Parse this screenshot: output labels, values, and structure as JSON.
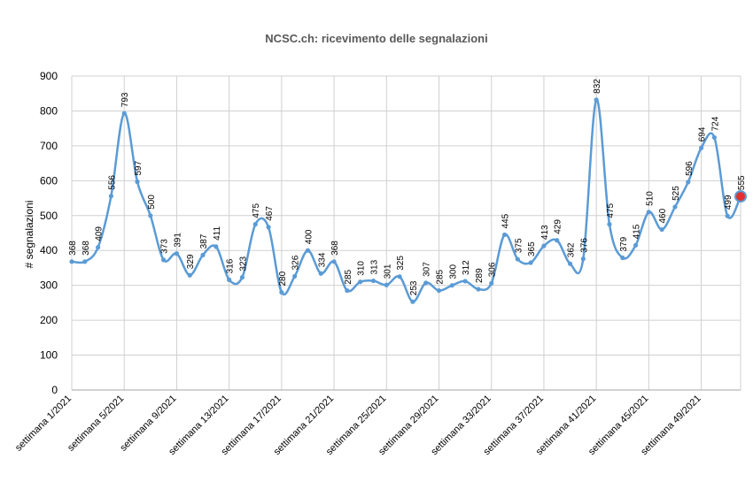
{
  "chart_data": {
    "type": "line",
    "title": "NCSC.ch: ricevimento delle segnalazioni",
    "xlabel": "",
    "ylabel": "# segnalazioni",
    "ylim": [
      0,
      900
    ],
    "yticks": [
      0,
      100,
      200,
      300,
      400,
      500,
      600,
      700,
      800,
      900
    ],
    "grid": true,
    "legend": "none",
    "x_tick_labels": [
      "settimana 1/2021",
      "settimana 5/2021",
      "settimana 9/2021",
      "settimana 13/2021",
      "settimana 17/2021",
      "settimana 21/2021",
      "settimana 25/2021",
      "settimana 29/2021",
      "settimana 33/2021",
      "settimana 37/2021",
      "settimana 41/2021",
      "settimana 45/2021",
      "settimana 49/2021"
    ],
    "x_tick_weeks": [
      1,
      5,
      9,
      13,
      17,
      21,
      25,
      29,
      33,
      37,
      41,
      45,
      49
    ],
    "weeks": [
      1,
      2,
      3,
      4,
      5,
      6,
      7,
      8,
      9,
      10,
      11,
      12,
      13,
      14,
      15,
      16,
      17,
      18,
      19,
      20,
      21,
      22,
      23,
      24,
      25,
      26,
      27,
      28,
      29,
      30,
      31,
      32,
      33,
      34,
      35,
      36,
      37,
      38,
      39,
      40,
      41,
      42,
      43,
      44,
      45,
      46,
      47,
      48,
      49,
      50,
      51,
      52
    ],
    "values": [
      368,
      368,
      409,
      556,
      793,
      597,
      500,
      373,
      391,
      329,
      387,
      411,
      316,
      323,
      475,
      467,
      280,
      326,
      400,
      334,
      368,
      285,
      310,
      313,
      301,
      325,
      253,
      307,
      285,
      300,
      312,
      289,
      306,
      445,
      375,
      365,
      413,
      429,
      362,
      376,
      832,
      475,
      379,
      415,
      510,
      460,
      525,
      596,
      694,
      724,
      499,
      555
    ],
    "labels": [
      "368",
      "368",
      "409",
      "556",
      "793",
      "597",
      "500",
      "373",
      "391",
      "329",
      "387",
      "411",
      "316",
      "323",
      "475",
      "467",
      "280",
      "326",
      "400",
      "334",
      "368",
      "285",
      "310",
      "313",
      "301",
      "325",
      "253",
      "307",
      "285",
      "300",
      "312",
      "289",
      "306",
      "445",
      "375",
      "365",
      "413",
      "429",
      "362",
      "376",
      "832",
      "475",
      "379",
      "415",
      "510",
      "460",
      "525",
      "596",
      "694",
      "724",
      "499",
      "555"
    ],
    "series_color": "#5b9bd5",
    "highlight_color": "#e03030",
    "highlight_index": 51
  }
}
